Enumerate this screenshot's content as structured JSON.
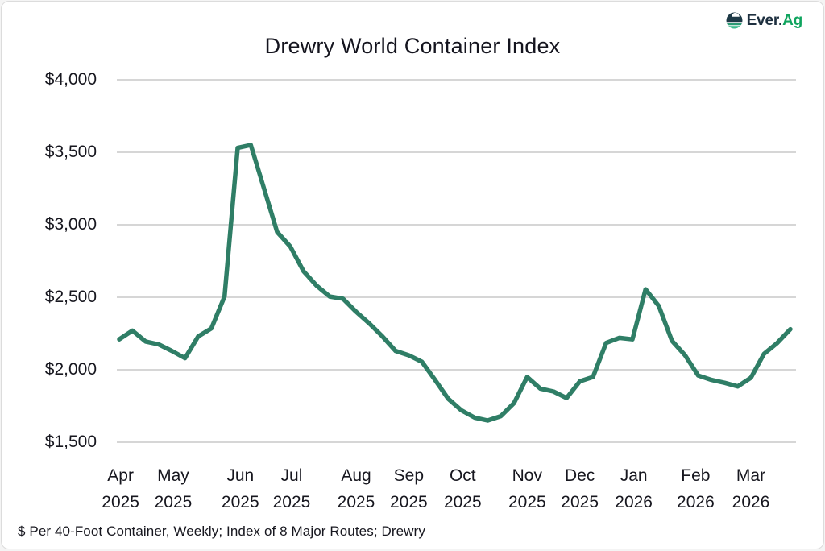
{
  "page": {
    "title": "Drewry World Container Index",
    "footer": "$ Per 40-Foot Container, Weekly; Index of 8 Major Routes; Drewry",
    "logo": {
      "prefix": "Ever.",
      "suffix": "Ag"
    },
    "colors": {
      "line": "#2F7E66",
      "gridline": "#c9c9c9",
      "logo_navy": "#1d2f3f",
      "logo_green": "#0fa45e"
    }
  },
  "chart_data": {
    "type": "line",
    "title": "Drewry World Container Index",
    "subtitle_note": "$ Per 40-Foot Container, Weekly; Index of 8 Major Routes; Drewry",
    "unit": "USD per 40-foot container",
    "frequency": "weekly",
    "grid": true,
    "legend": "none",
    "ylim": [
      1500,
      4000
    ],
    "yticks": [
      {
        "label": "$4,000",
        "value": 4000
      },
      {
        "label": "$3,500",
        "value": 3500
      },
      {
        "label": "$3,000",
        "value": 3000
      },
      {
        "label": "$2,500",
        "value": 2500
      },
      {
        "label": "$2,000",
        "value": 2000
      },
      {
        "label": "$1,500",
        "value": 1500
      }
    ],
    "months": [
      {
        "label": "Apr",
        "year": "2025",
        "week": 0.1
      },
      {
        "label": "May",
        "year": "2025",
        "week": 4.1
      },
      {
        "label": "Jun",
        "year": "2025",
        "week": 9.2
      },
      {
        "label": "Jul",
        "year": "2025",
        "week": 13.1
      },
      {
        "label": "Aug",
        "year": "2025",
        "week": 18.0
      },
      {
        "label": "Sep",
        "year": "2025",
        "week": 22.0
      },
      {
        "label": "Oct",
        "year": "2025",
        "week": 26.1
      },
      {
        "label": "Nov",
        "year": "2025",
        "week": 31.0
      },
      {
        "label": "Dec",
        "year": "2025",
        "week": 35.0
      },
      {
        "label": "Jan",
        "year": "2026",
        "week": 39.1
      },
      {
        "label": "Feb",
        "year": "2026",
        "week": 43.8
      },
      {
        "label": "Mar",
        "year": "2026",
        "week": 48.0
      }
    ],
    "series": [
      {
        "name": "Drewry World Container Index ($/40ft container, weekly)",
        "values": [
          2210,
          2270,
          2195,
          2175,
          2130,
          2080,
          2230,
          2285,
          2505,
          3530,
          3550,
          3250,
          2950,
          2850,
          2680,
          2580,
          2505,
          2490,
          2400,
          2320,
          2230,
          2130,
          2100,
          2055,
          1930,
          1800,
          1720,
          1670,
          1650,
          1680,
          1770,
          1950,
          1870,
          1850,
          1805,
          1920,
          1950,
          2185,
          2220,
          2210,
          2555,
          2440,
          2200,
          2100,
          1960,
          1930,
          1910,
          1885,
          1945,
          2110,
          2185,
          2280
        ]
      }
    ]
  }
}
